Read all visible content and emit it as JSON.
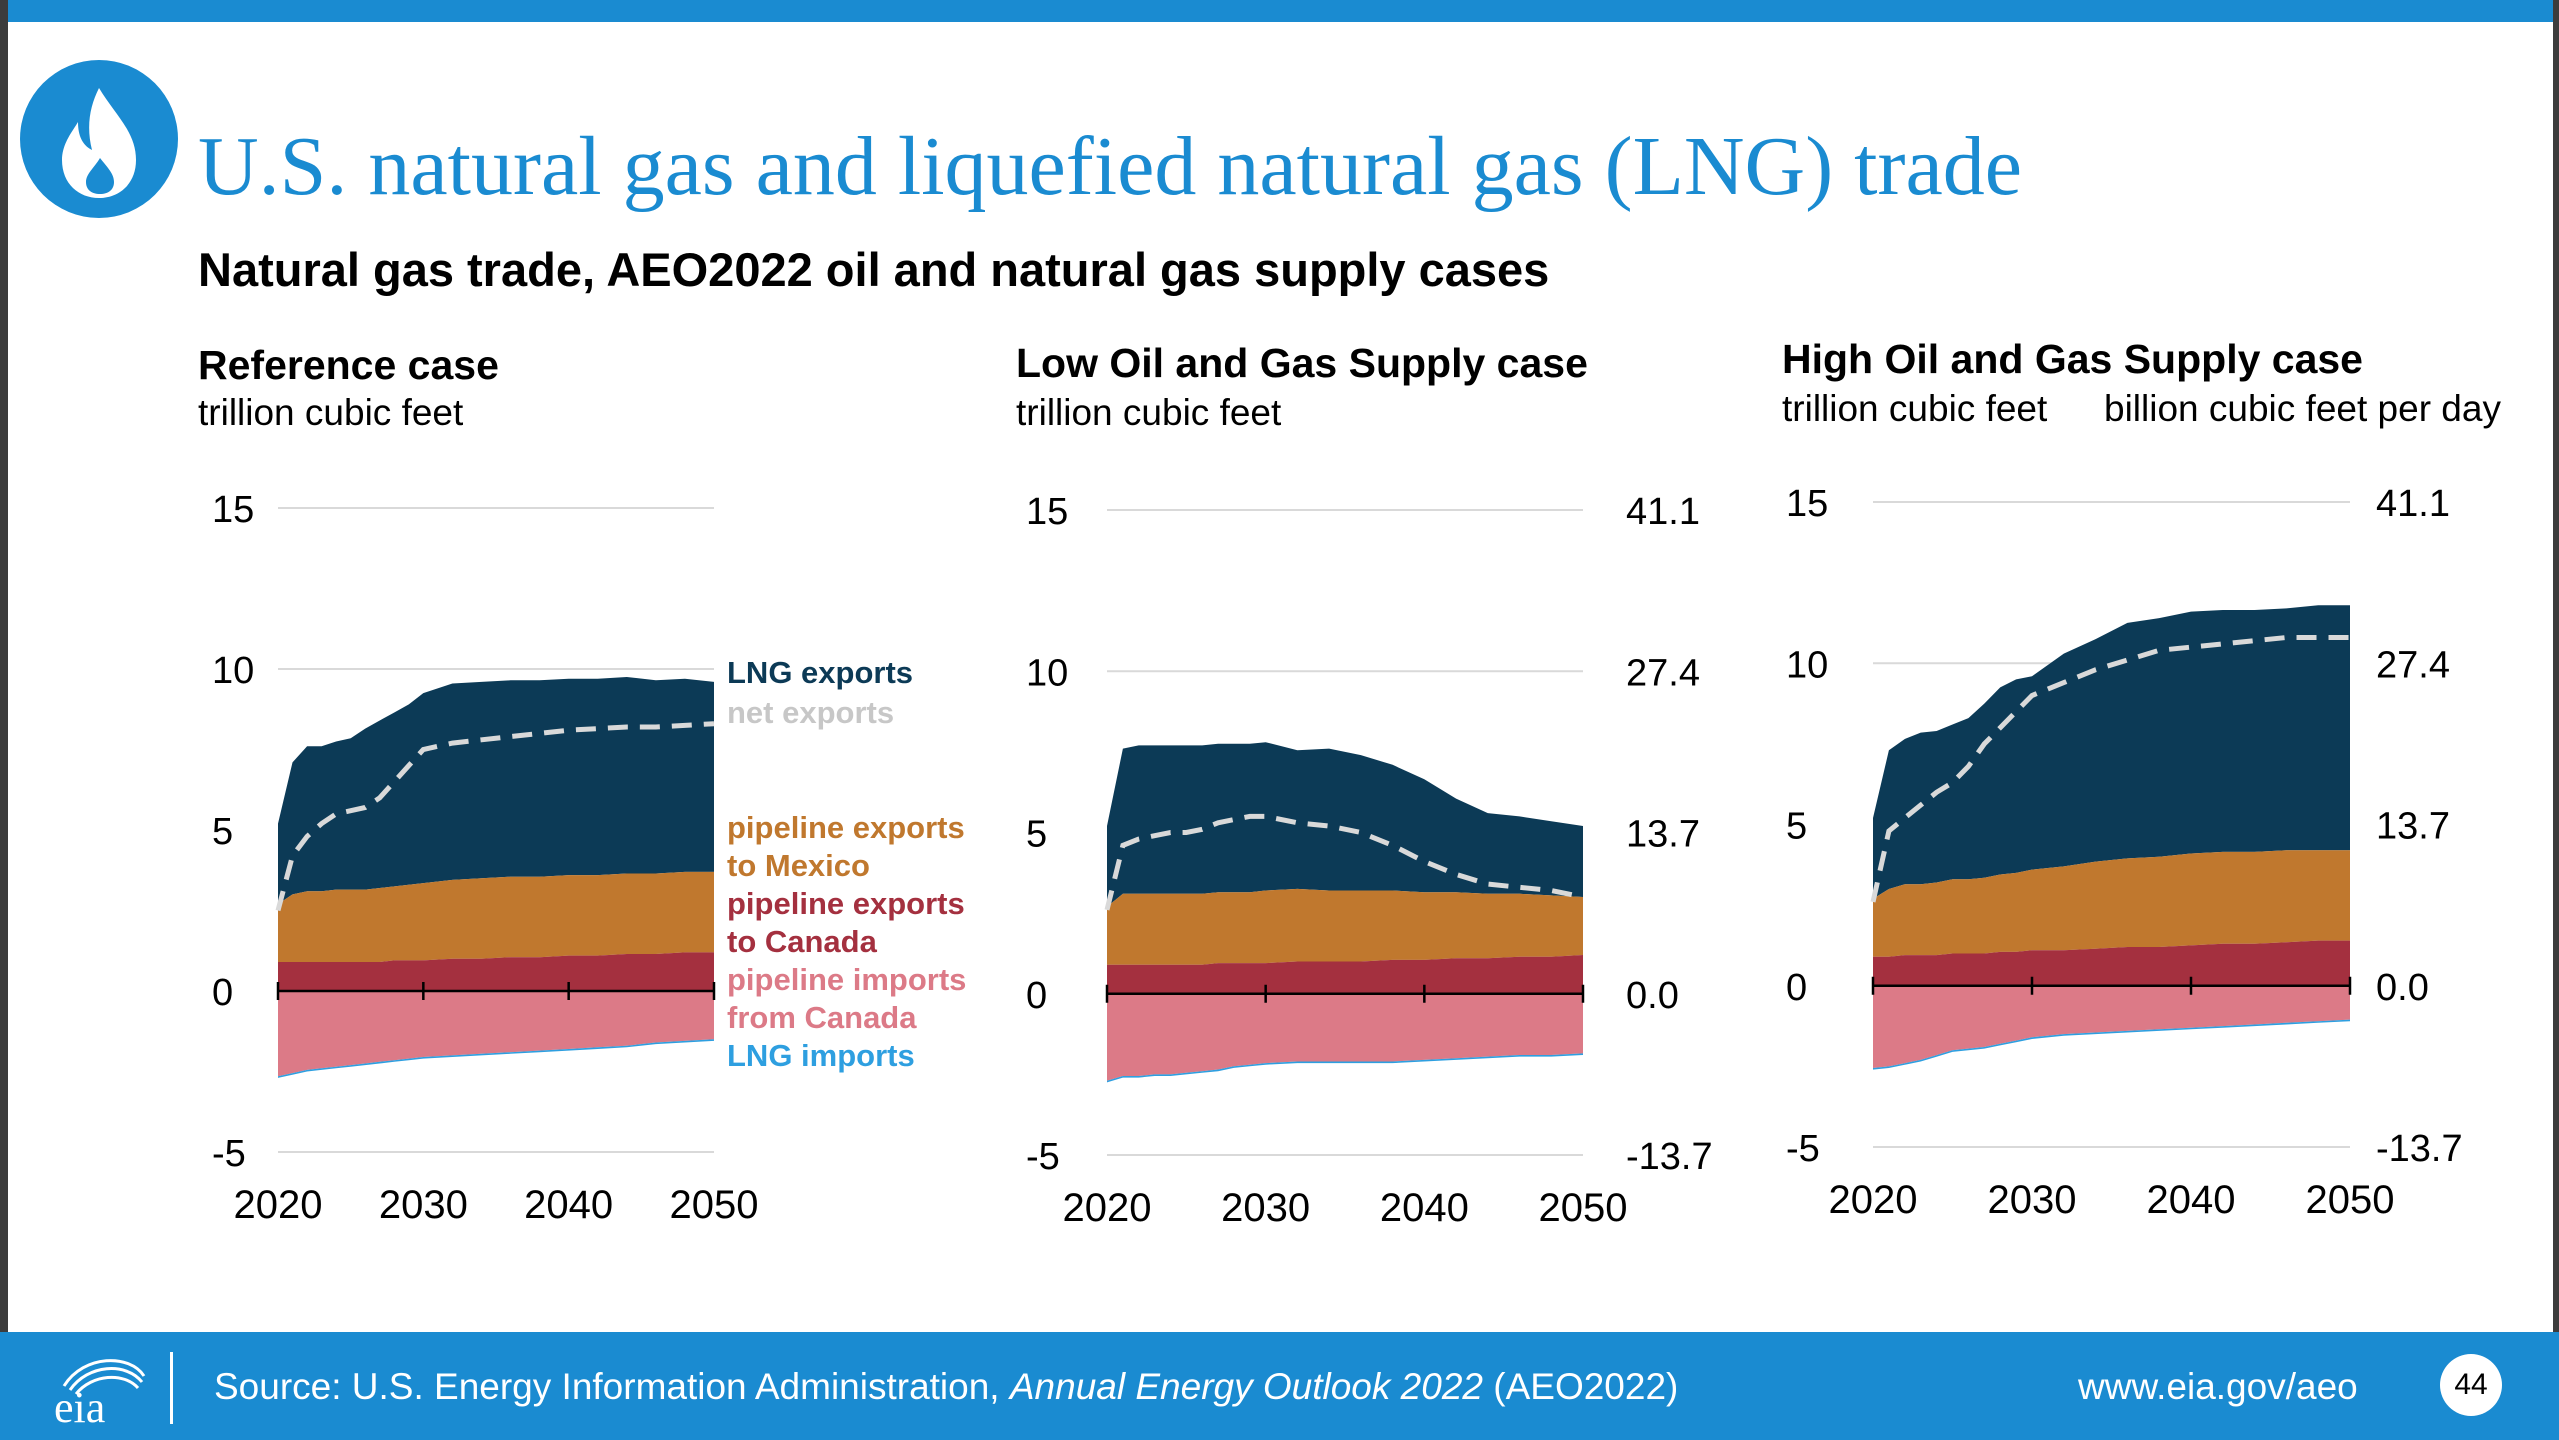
{
  "header": {
    "title": "U.S. natural gas and liquefied natural gas (LNG) trade",
    "subtitle": "Natural gas trade, AEO2022 oil and natural gas supply cases"
  },
  "footer": {
    "source_prefix": "Source: U.S. Energy Information Administration, ",
    "source_italic": "Annual Energy Outlook 2022",
    "source_suffix": " (AEO2022)",
    "url": "www.eia.gov/aeo",
    "page_number": "44",
    "logo_text": "eia"
  },
  "colors": {
    "brand_blue": "#1a8bd1",
    "lng_exports": "#0c3a56",
    "pipeline_exports_mexico": "#c0782e",
    "pipeline_exports_canada": "#a4303f",
    "pipeline_imports_canada": "#dc7a87",
    "lng_imports": "#2e9fe0",
    "net_exports": "#d9d9d9"
  },
  "legend": [
    {
      "label": "LNG exports",
      "color": "#0c3a56"
    },
    {
      "label": "net exports",
      "color": "#c7c7c7"
    },
    {
      "label": "pipeline exports\nto Mexico",
      "color": "#c0782e"
    },
    {
      "label": "pipeline exports\nto Canada",
      "color": "#a4303f"
    },
    {
      "label": "pipeline imports\nfrom Canada",
      "color": "#dc7a87"
    },
    {
      "label": "LNG imports",
      "color": "#2e9fe0"
    }
  ],
  "chart_data": [
    {
      "type": "area",
      "title": "Reference case",
      "ylabel": "trillion cubic feet",
      "ylabel_right": "",
      "x": [
        2020,
        2021,
        2022,
        2023,
        2024,
        2025,
        2026,
        2027,
        2028,
        2029,
        2030,
        2032,
        2034,
        2036,
        2038,
        2040,
        2042,
        2044,
        2046,
        2048,
        2050
      ],
      "ylim": [
        -5,
        15
      ],
      "yticks": [
        15,
        10,
        5,
        0,
        -5
      ],
      "yticks_right": [],
      "xticks": [
        2020,
        2030,
        2040,
        2050
      ],
      "series": [
        {
          "name": "pipeline exports to Canada",
          "values": [
            0.9,
            0.9,
            0.9,
            0.9,
            0.9,
            0.9,
            0.9,
            0.9,
            0.95,
            0.95,
            0.95,
            1.0,
            1.0,
            1.05,
            1.05,
            1.1,
            1.1,
            1.15,
            1.15,
            1.2,
            1.2
          ]
        },
        {
          "name": "pipeline exports to Mexico",
          "values": [
            1.8,
            2.1,
            2.2,
            2.2,
            2.25,
            2.25,
            2.25,
            2.3,
            2.3,
            2.35,
            2.4,
            2.45,
            2.5,
            2.5,
            2.5,
            2.5,
            2.5,
            2.5,
            2.5,
            2.5,
            2.5
          ]
        },
        {
          "name": "LNG exports",
          "values": [
            2.5,
            4.1,
            4.5,
            4.5,
            4.6,
            4.7,
            5.0,
            5.2,
            5.4,
            5.6,
            5.9,
            6.1,
            6.1,
            6.1,
            6.1,
            6.1,
            6.1,
            6.1,
            6.0,
            6.0,
            5.9
          ]
        },
        {
          "name": "pipeline imports from Canada",
          "values": [
            -2.65,
            -2.55,
            -2.45,
            -2.4,
            -2.35,
            -2.3,
            -2.25,
            -2.2,
            -2.15,
            -2.1,
            -2.05,
            -2.0,
            -1.95,
            -1.9,
            -1.85,
            -1.8,
            -1.75,
            -1.7,
            -1.6,
            -1.55,
            -1.5
          ]
        },
        {
          "name": "LNG imports",
          "values": [
            -0.05,
            -0.05,
            -0.05,
            -0.05,
            -0.05,
            -0.05,
            -0.05,
            -0.05,
            -0.05,
            -0.05,
            -0.05,
            -0.05,
            -0.05,
            -0.05,
            -0.05,
            -0.05,
            -0.05,
            -0.05,
            -0.05,
            -0.05,
            -0.05
          ]
        },
        {
          "name": "net exports",
          "values": [
            2.5,
            4.2,
            4.8,
            5.2,
            5.5,
            5.6,
            5.7,
            6.0,
            6.5,
            7.0,
            7.5,
            7.7,
            7.8,
            7.9,
            8.0,
            8.1,
            8.15,
            8.2,
            8.2,
            8.25,
            8.3
          ]
        }
      ]
    },
    {
      "type": "area",
      "title": "Low Oil and Gas Supply case",
      "ylabel": "trillion cubic feet",
      "ylabel_right": "",
      "x": [
        2020,
        2021,
        2022,
        2023,
        2024,
        2025,
        2026,
        2027,
        2028,
        2029,
        2030,
        2032,
        2034,
        2036,
        2038,
        2040,
        2042,
        2044,
        2046,
        2048,
        2050
      ],
      "ylim": [
        -5,
        15
      ],
      "yticks": [
        15,
        10,
        5,
        0,
        -5
      ],
      "yticks_right": [
        "41.1",
        "27.4",
        "13.7",
        "0.0",
        "-13.7"
      ],
      "xticks": [
        2020,
        2030,
        2040,
        2050
      ],
      "series": [
        {
          "name": "pipeline exports to Canada",
          "values": [
            0.9,
            0.9,
            0.9,
            0.9,
            0.9,
            0.9,
            0.9,
            0.95,
            0.95,
            0.95,
            0.95,
            1.0,
            1.0,
            1.0,
            1.05,
            1.05,
            1.1,
            1.1,
            1.15,
            1.15,
            1.2
          ]
        },
        {
          "name": "pipeline exports to Mexico",
          "values": [
            1.8,
            2.2,
            2.2,
            2.2,
            2.2,
            2.2,
            2.2,
            2.2,
            2.2,
            2.2,
            2.25,
            2.25,
            2.2,
            2.2,
            2.15,
            2.1,
            2.05,
            2.0,
            1.95,
            1.9,
            1.8
          ]
        },
        {
          "name": "LNG exports",
          "values": [
            2.5,
            4.5,
            4.6,
            4.6,
            4.6,
            4.6,
            4.6,
            4.6,
            4.6,
            4.6,
            4.6,
            4.3,
            4.4,
            4.2,
            3.9,
            3.5,
            2.9,
            2.5,
            2.4,
            2.3,
            2.2
          ]
        },
        {
          "name": "pipeline imports from Canada",
          "values": [
            -2.7,
            -2.55,
            -2.55,
            -2.5,
            -2.5,
            -2.45,
            -2.4,
            -2.35,
            -2.25,
            -2.2,
            -2.15,
            -2.1,
            -2.1,
            -2.1,
            -2.1,
            -2.05,
            -2.0,
            -1.95,
            -1.9,
            -1.9,
            -1.85
          ]
        },
        {
          "name": "LNG imports",
          "values": [
            -0.05,
            -0.05,
            -0.05,
            -0.05,
            -0.05,
            -0.05,
            -0.05,
            -0.05,
            -0.05,
            -0.05,
            -0.05,
            -0.05,
            -0.05,
            -0.05,
            -0.05,
            -0.05,
            -0.05,
            -0.05,
            -0.05,
            -0.05,
            -0.05
          ]
        },
        {
          "name": "net exports",
          "values": [
            2.6,
            4.6,
            4.8,
            4.9,
            5.0,
            5.0,
            5.1,
            5.3,
            5.4,
            5.5,
            5.5,
            5.3,
            5.2,
            5.0,
            4.6,
            4.1,
            3.7,
            3.4,
            3.3,
            3.2,
            3.0
          ]
        }
      ]
    },
    {
      "type": "area",
      "title": "High Oil and Gas Supply case",
      "ylabel": "trillion cubic feet",
      "ylabel_right": "billion cubic feet per day",
      "x": [
        2020,
        2021,
        2022,
        2023,
        2024,
        2025,
        2026,
        2027,
        2028,
        2029,
        2030,
        2032,
        2034,
        2036,
        2038,
        2040,
        2042,
        2044,
        2046,
        2048,
        2050
      ],
      "ylim": [
        -5,
        15
      ],
      "yticks": [
        15,
        10,
        5,
        0,
        -5
      ],
      "yticks_right": [
        "41.1",
        "27.4",
        "13.7",
        "0.0",
        "-13.7"
      ],
      "xticks": [
        2020,
        2030,
        2040,
        2050
      ],
      "series": [
        {
          "name": "pipeline exports to Canada",
          "values": [
            0.9,
            0.9,
            0.95,
            0.95,
            0.95,
            1.0,
            1.0,
            1.0,
            1.05,
            1.05,
            1.1,
            1.1,
            1.15,
            1.2,
            1.2,
            1.25,
            1.3,
            1.3,
            1.35,
            1.4,
            1.4
          ]
        },
        {
          "name": "pipeline exports to Mexico",
          "values": [
            1.8,
            2.1,
            2.2,
            2.2,
            2.25,
            2.3,
            2.3,
            2.35,
            2.4,
            2.45,
            2.5,
            2.6,
            2.7,
            2.75,
            2.8,
            2.85,
            2.85,
            2.85,
            2.85,
            2.8,
            2.8
          ]
        },
        {
          "name": "LNG exports",
          "values": [
            2.5,
            4.3,
            4.5,
            4.7,
            4.7,
            4.8,
            5.0,
            5.4,
            5.8,
            6.0,
            6.0,
            6.6,
            6.9,
            7.3,
            7.4,
            7.5,
            7.5,
            7.5,
            7.5,
            7.6,
            7.6
          ]
        },
        {
          "name": "pipeline imports from Canada",
          "values": [
            -2.55,
            -2.5,
            -2.4,
            -2.3,
            -2.15,
            -2.0,
            -1.95,
            -1.9,
            -1.8,
            -1.7,
            -1.6,
            -1.5,
            -1.45,
            -1.4,
            -1.35,
            -1.3,
            -1.25,
            -1.2,
            -1.15,
            -1.1,
            -1.05
          ]
        },
        {
          "name": "LNG imports",
          "values": [
            -0.05,
            -0.05,
            -0.05,
            -0.05,
            -0.05,
            -0.05,
            -0.05,
            -0.05,
            -0.05,
            -0.05,
            -0.05,
            -0.05,
            -0.05,
            -0.05,
            -0.05,
            -0.05,
            -0.05,
            -0.05,
            -0.05,
            -0.05,
            -0.05
          ]
        },
        {
          "name": "net exports",
          "values": [
            2.6,
            4.8,
            5.2,
            5.6,
            6.0,
            6.3,
            6.8,
            7.5,
            8.0,
            8.5,
            9.0,
            9.4,
            9.8,
            10.1,
            10.4,
            10.5,
            10.6,
            10.7,
            10.8,
            10.8,
            10.8
          ]
        }
      ]
    }
  ]
}
